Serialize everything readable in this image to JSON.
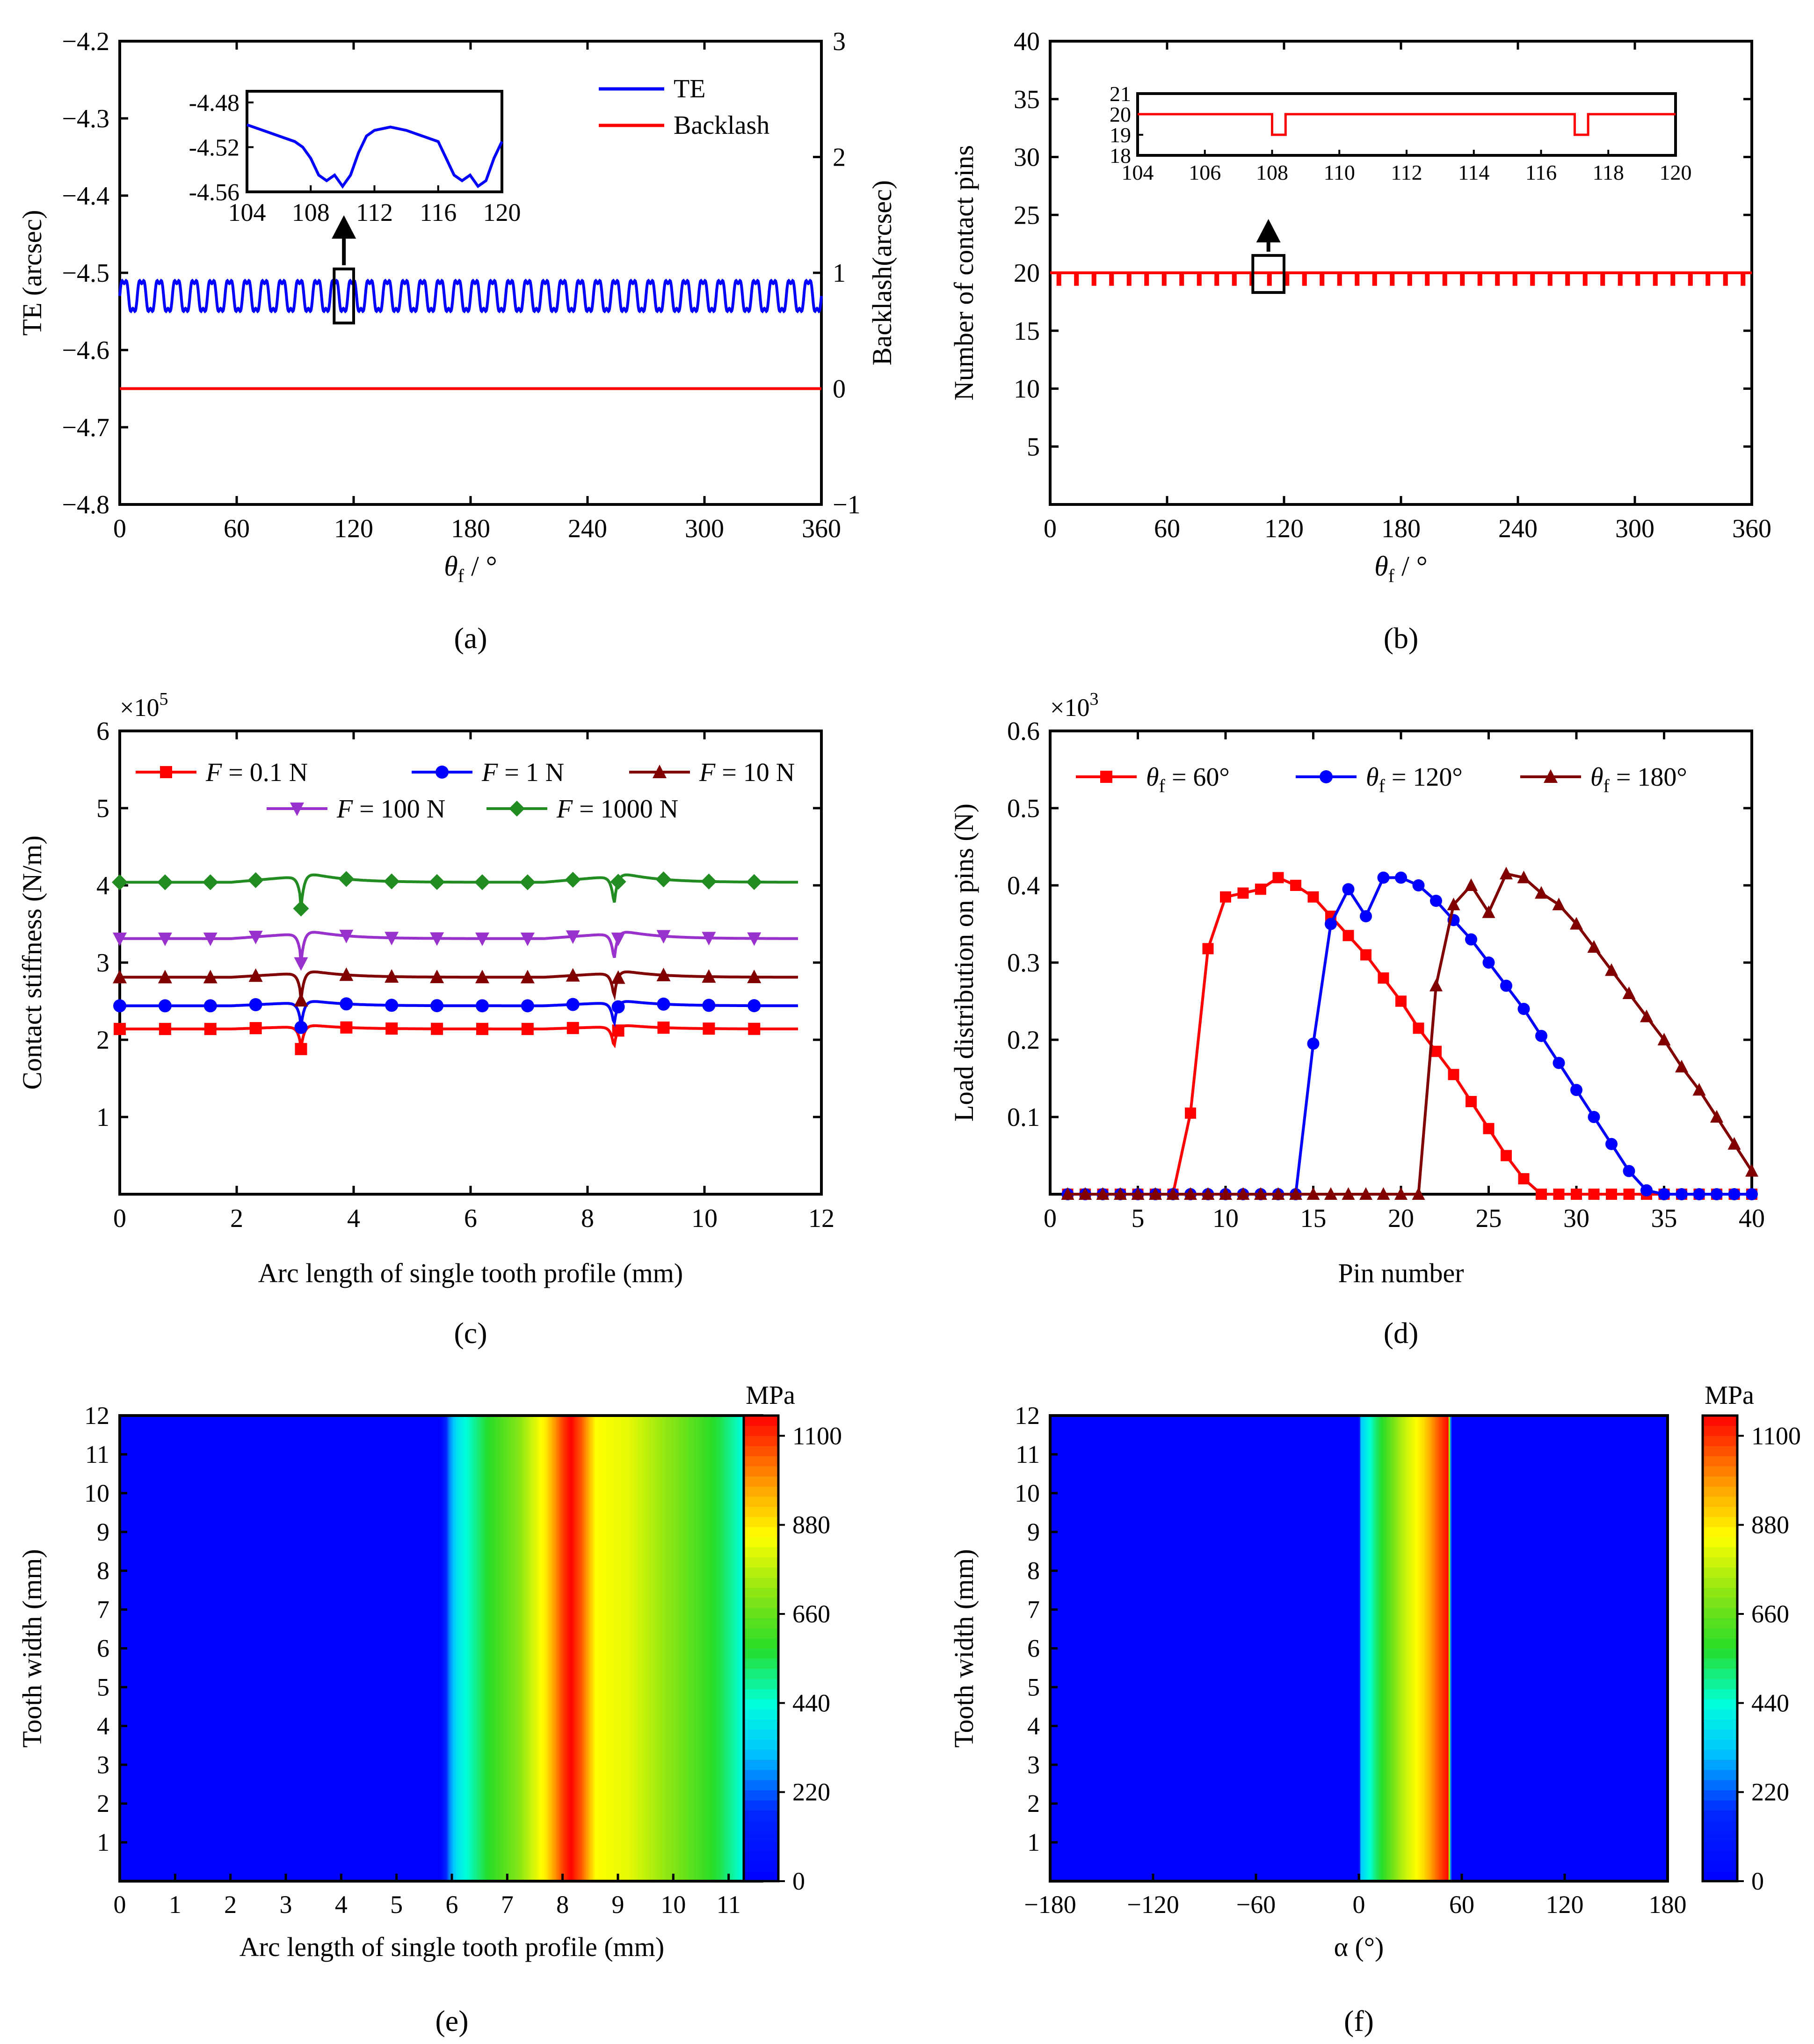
{
  "chart_data": [
    {
      "id": "a",
      "caption": "(a)",
      "type": "line",
      "xlabel_main": "θ",
      "xlabel_sub": "f",
      "xlabel_unit": " / °",
      "ylabel": "TE (arcsec)",
      "ylabel_right": "Backlash(arcsec)",
      "xlim": [
        0,
        360
      ],
      "ylim": [
        -4.8,
        -4.2
      ],
      "ylim_right": [
        -1,
        3
      ],
      "xticks": [
        "0",
        "60",
        "120",
        "180",
        "240",
        "300",
        "360"
      ],
      "yticks": [
        "−4.8",
        "−4.7",
        "−4.6",
        "−4.5",
        "−4.4",
        "−4.3",
        "−4.2"
      ],
      "yticks_right": [
        "−1",
        "0",
        "1",
        "2",
        "3"
      ],
      "series": [
        {
          "name": "TE",
          "color": "#0000ff",
          "pattern": "oscillating",
          "center": -4.53,
          "amplitude": 0.022,
          "period_deg": 9.0
        },
        {
          "name": "Backlash",
          "color": "#ff0000",
          "axis": "right",
          "values": [
            0,
            0
          ]
        }
      ],
      "legend": "top-right",
      "annotations": [
        {
          "type": "zoom-box",
          "x": [
            110,
            120
          ],
          "y": [
            -4.565,
            -4.495
          ]
        }
      ],
      "inset": {
        "xlim": [
          104,
          120
        ],
        "ylim": [
          -4.56,
          -4.47
        ],
        "xticks": [
          "104",
          "108",
          "112",
          "116",
          "120"
        ],
        "yticks": [
          "-4.56",
          "-4.52",
          "-4.48"
        ],
        "x": [
          104,
          105,
          106,
          107,
          107.5,
          108,
          108.5,
          109,
          109.5,
          110,
          110.5,
          111,
          111.5,
          112,
          113,
          114,
          115,
          116,
          116.5,
          117,
          117.5,
          118,
          118.5,
          119,
          119.5,
          120
        ],
        "y": [
          -4.5,
          -4.505,
          -4.51,
          -4.515,
          -4.52,
          -4.53,
          -4.545,
          -4.55,
          -4.545,
          -4.555,
          -4.545,
          -4.525,
          -4.51,
          -4.505,
          -4.502,
          -4.505,
          -4.51,
          -4.515,
          -4.53,
          -4.545,
          -4.55,
          -4.545,
          -4.555,
          -4.55,
          -4.53,
          -4.515
        ]
      }
    },
    {
      "id": "b",
      "caption": "(b)",
      "type": "line",
      "xlabel_main": "θ",
      "xlabel_sub": "f",
      "xlabel_unit": " / °",
      "ylabel": "Number of contact pins",
      "xlim": [
        0,
        360
      ],
      "ylim": [
        0,
        40
      ],
      "xticks": [
        "0",
        "60",
        "120",
        "180",
        "240",
        "300",
        "360"
      ],
      "yticks": [
        "5",
        "10",
        "15",
        "20",
        "25",
        "30",
        "35",
        "40"
      ],
      "series": [
        {
          "color": "#ff0000",
          "pattern": "pulse-dips",
          "base": 20,
          "dip": 19,
          "period_deg": 9.0,
          "dip_width_deg": 1.0
        }
      ],
      "annotations": [
        {
          "type": "zoom-box",
          "x": [
            104,
            120
          ],
          "y": [
            18.3,
            21.5
          ]
        }
      ],
      "inset": {
        "xlim": [
          104,
          120
        ],
        "ylim": [
          18,
          21
        ],
        "xticks": [
          "104",
          "106",
          "108",
          "110",
          "112",
          "114",
          "116",
          "118",
          "120"
        ],
        "yticks": [
          "18",
          "19",
          "20",
          "21"
        ],
        "x": [
          104,
          108,
          108,
          108.4,
          108.4,
          117,
          117,
          117.4,
          117.4,
          120
        ],
        "y": [
          20,
          20,
          19,
          19,
          20,
          20,
          19,
          19,
          20,
          20
        ]
      }
    },
    {
      "id": "c",
      "caption": "(c)",
      "type": "line",
      "xlabel": "Arc length of single tooth profile (mm)",
      "ylabel": "Contact stiffness (N/m)",
      "scale_note": "×10",
      "scale_exp": "5",
      "xlim": [
        0,
        12
      ],
      "ylim": [
        0,
        6
      ],
      "xticks": [
        "0",
        "2",
        "4",
        "6",
        "8",
        "10",
        "12"
      ],
      "yticks": [
        "1",
        "2",
        "3",
        "4",
        "5",
        "6"
      ],
      "legend": "top",
      "series": [
        {
          "name_var": "F",
          "name_val": " = 0.1 N",
          "color": "#ff0000",
          "marker": "square",
          "base": 2.14
        },
        {
          "name_var": "F",
          "name_val": " = 1 N",
          "color": "#0000ff",
          "marker": "circle",
          "base": 2.44
        },
        {
          "name_var": "F",
          "name_val": " = 10 N",
          "color": "#800000",
          "marker": "triangle-up",
          "base": 2.81
        },
        {
          "name_var": "F",
          "name_val": " = 100 N",
          "color": "#9932cc",
          "marker": "triangle-down",
          "base": 3.31
        },
        {
          "name_var": "F",
          "name_val": " = 1000 N",
          "color": "#228b22",
          "marker": "diamond",
          "base": 4.04
        }
      ],
      "x_end": 11.6,
      "dips_at": [
        3.1,
        8.45
      ]
    },
    {
      "id": "d",
      "caption": "(d)",
      "type": "line",
      "xlabel": "Pin number",
      "ylabel": "Load distribution on pins (N)",
      "scale_note": "×10",
      "scale_exp": "3",
      "xlim": [
        0,
        40
      ],
      "ylim": [
        0,
        0.6
      ],
      "xticks": [
        "0",
        "5",
        "10",
        "15",
        "20",
        "25",
        "30",
        "35",
        "40"
      ],
      "yticks": [
        "0.1",
        "0.2",
        "0.3",
        "0.4",
        "0.5",
        "0.6"
      ],
      "legend": "top",
      "x": [
        1,
        2,
        3,
        4,
        5,
        6,
        7,
        8,
        9,
        10,
        11,
        12,
        13,
        14,
        15,
        16,
        17,
        18,
        19,
        20,
        21,
        22,
        23,
        24,
        25,
        26,
        27,
        28,
        29,
        30,
        31,
        32,
        33,
        34,
        35,
        36,
        37,
        38,
        39,
        40
      ],
      "series": [
        {
          "name_var": "θ",
          "name_sub": "f",
          "name_val": " = 60°",
          "color": "#ff0000",
          "marker": "square",
          "values": [
            0,
            0,
            0,
            0,
            0,
            0,
            0,
            0.105,
            0.318,
            0.385,
            0.39,
            0.395,
            0.41,
            0.4,
            0.385,
            0.36,
            0.335,
            0.31,
            0.28,
            0.25,
            0.215,
            0.185,
            0.155,
            0.12,
            0.085,
            0.05,
            0.02,
            0,
            0,
            0,
            0,
            0,
            0,
            0,
            0,
            0,
            0,
            0,
            0,
            0
          ]
        },
        {
          "name_var": "θ",
          "name_sub": "f",
          "name_val": " = 120°",
          "color": "#0000ff",
          "marker": "circle",
          "values": [
            0,
            0,
            0,
            0,
            0,
            0,
            0,
            0,
            0,
            0,
            0,
            0,
            0,
            0,
            0.195,
            0.35,
            0.395,
            0.36,
            0.41,
            0.41,
            0.4,
            0.38,
            0.355,
            0.33,
            0.3,
            0.27,
            0.24,
            0.205,
            0.17,
            0.135,
            0.1,
            0.065,
            0.03,
            0.005,
            0,
            0,
            0,
            0,
            0,
            0
          ]
        },
        {
          "name_var": "θ",
          "name_sub": "f",
          "name_val": " = 180°",
          "color": "#800000",
          "marker": "triangle-up",
          "values": [
            0,
            0,
            0,
            0,
            0,
            0,
            0,
            0,
            0,
            0,
            0,
            0,
            0,
            0,
            0,
            0,
            0,
            0,
            0,
            0,
            0,
            0.27,
            0.375,
            0.4,
            0.365,
            0.415,
            0.41,
            0.39,
            0.375,
            0.35,
            0.32,
            0.29,
            0.26,
            0.23,
            0.2,
            0.165,
            0.135,
            0.1,
            0.065,
            0.03
          ]
        }
      ]
    },
    {
      "id": "e",
      "caption": "(e)",
      "type": "heatmap",
      "xlabel": "Arc length of single tooth profile (mm)",
      "ylabel": "Tooth width (mm)",
      "colorbar_label": "MPa",
      "colorbar_ticks": [
        "0",
        "220",
        "440",
        "660",
        "880",
        "1100"
      ],
      "colorbar_range": [
        0,
        1150
      ],
      "xlim": [
        0,
        12
      ],
      "ylim": [
        0,
        12
      ],
      "xticks": [
        "0",
        "1",
        "2",
        "3",
        "4",
        "5",
        "6",
        "7",
        "8",
        "9",
        "10",
        "11"
      ],
      "yticks": [
        "1",
        "2",
        "3",
        "4",
        "5",
        "6",
        "7",
        "8",
        "9",
        "10",
        "11",
        "12"
      ],
      "x_end": 11.6,
      "profile": [
        [
          0,
          10
        ],
        [
          5.8,
          10
        ],
        [
          5.95,
          250
        ],
        [
          6.1,
          380
        ],
        [
          6.6,
          560
        ],
        [
          7.2,
          700
        ],
        [
          7.7,
          880
        ],
        [
          8.0,
          1080
        ],
        [
          8.15,
          1150
        ],
        [
          8.35,
          1050
        ],
        [
          8.6,
          850
        ],
        [
          9.2,
          820
        ],
        [
          10.0,
          700
        ],
        [
          10.8,
          560
        ],
        [
          11.3,
          420
        ],
        [
          11.5,
          300
        ],
        [
          11.6,
          10
        ]
      ]
    },
    {
      "id": "f",
      "caption": "(f)",
      "type": "heatmap",
      "xlabel": "α (°)",
      "ylabel": "Tooth width (mm)",
      "colorbar_label": "MPa",
      "colorbar_ticks": [
        "0",
        "220",
        "440",
        "660",
        "880",
        "1100"
      ],
      "colorbar_range": [
        0,
        1150
      ],
      "xlim": [
        -180,
        180
      ],
      "ylim": [
        0,
        12
      ],
      "xticks": [
        "−180",
        "−120",
        "−60",
        "0",
        "60",
        "120",
        "180"
      ],
      "yticks": [
        "1",
        "2",
        "3",
        "4",
        "5",
        "6",
        "7",
        "8",
        "9",
        "10",
        "11",
        "12"
      ],
      "x_start": -180,
      "x_end": 180,
      "profile": [
        [
          -180,
          10
        ],
        [
          0,
          10
        ],
        [
          1,
          320
        ],
        [
          10,
          520
        ],
        [
          25,
          760
        ],
        [
          38,
          900
        ],
        [
          46,
          1050
        ],
        [
          52,
          1140
        ],
        [
          54,
          10
        ],
        [
          180,
          10
        ]
      ]
    }
  ]
}
